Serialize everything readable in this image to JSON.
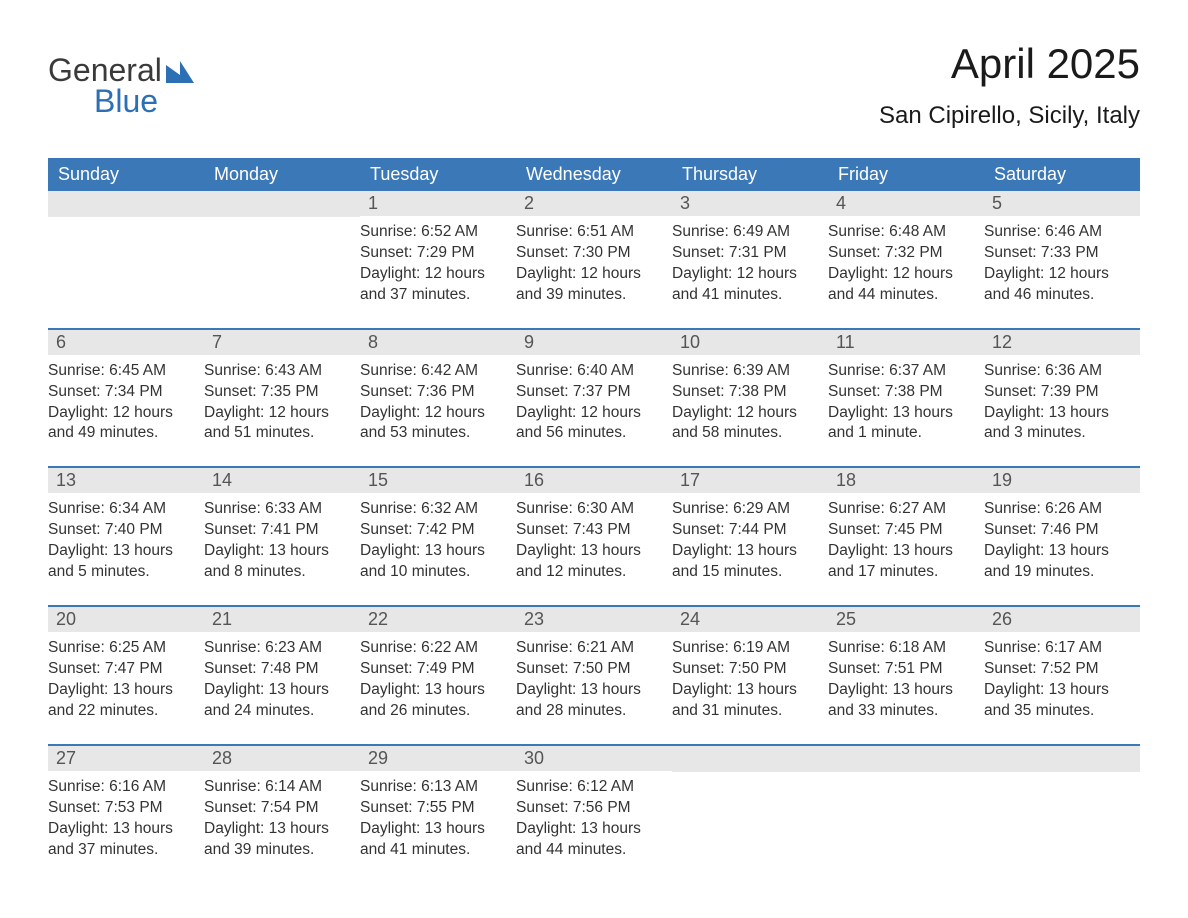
{
  "logo": {
    "text1": "General",
    "text2": "Blue",
    "icon_color": "#2c6fb5"
  },
  "title": "April 2025",
  "subtitle": "San Cipirello, Sicily, Italy",
  "colors": {
    "header_bg": "#3b78b8",
    "header_fg": "#ffffff",
    "daynum_bg": "#e7e7e7",
    "daynum_fg": "#555555",
    "row_border": "#3b78b8",
    "body_text": "#333333",
    "background": "#ffffff"
  },
  "typography": {
    "title_fontsize": 42,
    "subtitle_fontsize": 24,
    "dow_fontsize": 18,
    "daynum_fontsize": 18,
    "detail_fontsize": 15.5,
    "font_family": "Arial"
  },
  "dow": [
    "Sunday",
    "Monday",
    "Tuesday",
    "Wednesday",
    "Thursday",
    "Friday",
    "Saturday"
  ],
  "weeks": [
    [
      null,
      null,
      {
        "n": "1",
        "sr": "Sunrise: 6:52 AM",
        "ss": "Sunset: 7:29 PM",
        "dl1": "Daylight: 12 hours",
        "dl2": "and 37 minutes."
      },
      {
        "n": "2",
        "sr": "Sunrise: 6:51 AM",
        "ss": "Sunset: 7:30 PM",
        "dl1": "Daylight: 12 hours",
        "dl2": "and 39 minutes."
      },
      {
        "n": "3",
        "sr": "Sunrise: 6:49 AM",
        "ss": "Sunset: 7:31 PM",
        "dl1": "Daylight: 12 hours",
        "dl2": "and 41 minutes."
      },
      {
        "n": "4",
        "sr": "Sunrise: 6:48 AM",
        "ss": "Sunset: 7:32 PM",
        "dl1": "Daylight: 12 hours",
        "dl2": "and 44 minutes."
      },
      {
        "n": "5",
        "sr": "Sunrise: 6:46 AM",
        "ss": "Sunset: 7:33 PM",
        "dl1": "Daylight: 12 hours",
        "dl2": "and 46 minutes."
      }
    ],
    [
      {
        "n": "6",
        "sr": "Sunrise: 6:45 AM",
        "ss": "Sunset: 7:34 PM",
        "dl1": "Daylight: 12 hours",
        "dl2": "and 49 minutes."
      },
      {
        "n": "7",
        "sr": "Sunrise: 6:43 AM",
        "ss": "Sunset: 7:35 PM",
        "dl1": "Daylight: 12 hours",
        "dl2": "and 51 minutes."
      },
      {
        "n": "8",
        "sr": "Sunrise: 6:42 AM",
        "ss": "Sunset: 7:36 PM",
        "dl1": "Daylight: 12 hours",
        "dl2": "and 53 minutes."
      },
      {
        "n": "9",
        "sr": "Sunrise: 6:40 AM",
        "ss": "Sunset: 7:37 PM",
        "dl1": "Daylight: 12 hours",
        "dl2": "and 56 minutes."
      },
      {
        "n": "10",
        "sr": "Sunrise: 6:39 AM",
        "ss": "Sunset: 7:38 PM",
        "dl1": "Daylight: 12 hours",
        "dl2": "and 58 minutes."
      },
      {
        "n": "11",
        "sr": "Sunrise: 6:37 AM",
        "ss": "Sunset: 7:38 PM",
        "dl1": "Daylight: 13 hours",
        "dl2": "and 1 minute."
      },
      {
        "n": "12",
        "sr": "Sunrise: 6:36 AM",
        "ss": "Sunset: 7:39 PM",
        "dl1": "Daylight: 13 hours",
        "dl2": "and 3 minutes."
      }
    ],
    [
      {
        "n": "13",
        "sr": "Sunrise: 6:34 AM",
        "ss": "Sunset: 7:40 PM",
        "dl1": "Daylight: 13 hours",
        "dl2": "and 5 minutes."
      },
      {
        "n": "14",
        "sr": "Sunrise: 6:33 AM",
        "ss": "Sunset: 7:41 PM",
        "dl1": "Daylight: 13 hours",
        "dl2": "and 8 minutes."
      },
      {
        "n": "15",
        "sr": "Sunrise: 6:32 AM",
        "ss": "Sunset: 7:42 PM",
        "dl1": "Daylight: 13 hours",
        "dl2": "and 10 minutes."
      },
      {
        "n": "16",
        "sr": "Sunrise: 6:30 AM",
        "ss": "Sunset: 7:43 PM",
        "dl1": "Daylight: 13 hours",
        "dl2": "and 12 minutes."
      },
      {
        "n": "17",
        "sr": "Sunrise: 6:29 AM",
        "ss": "Sunset: 7:44 PM",
        "dl1": "Daylight: 13 hours",
        "dl2": "and 15 minutes."
      },
      {
        "n": "18",
        "sr": "Sunrise: 6:27 AM",
        "ss": "Sunset: 7:45 PM",
        "dl1": "Daylight: 13 hours",
        "dl2": "and 17 minutes."
      },
      {
        "n": "19",
        "sr": "Sunrise: 6:26 AM",
        "ss": "Sunset: 7:46 PM",
        "dl1": "Daylight: 13 hours",
        "dl2": "and 19 minutes."
      }
    ],
    [
      {
        "n": "20",
        "sr": "Sunrise: 6:25 AM",
        "ss": "Sunset: 7:47 PM",
        "dl1": "Daylight: 13 hours",
        "dl2": "and 22 minutes."
      },
      {
        "n": "21",
        "sr": "Sunrise: 6:23 AM",
        "ss": "Sunset: 7:48 PM",
        "dl1": "Daylight: 13 hours",
        "dl2": "and 24 minutes."
      },
      {
        "n": "22",
        "sr": "Sunrise: 6:22 AM",
        "ss": "Sunset: 7:49 PM",
        "dl1": "Daylight: 13 hours",
        "dl2": "and 26 minutes."
      },
      {
        "n": "23",
        "sr": "Sunrise: 6:21 AM",
        "ss": "Sunset: 7:50 PM",
        "dl1": "Daylight: 13 hours",
        "dl2": "and 28 minutes."
      },
      {
        "n": "24",
        "sr": "Sunrise: 6:19 AM",
        "ss": "Sunset: 7:50 PM",
        "dl1": "Daylight: 13 hours",
        "dl2": "and 31 minutes."
      },
      {
        "n": "25",
        "sr": "Sunrise: 6:18 AM",
        "ss": "Sunset: 7:51 PM",
        "dl1": "Daylight: 13 hours",
        "dl2": "and 33 minutes."
      },
      {
        "n": "26",
        "sr": "Sunrise: 6:17 AM",
        "ss": "Sunset: 7:52 PM",
        "dl1": "Daylight: 13 hours",
        "dl2": "and 35 minutes."
      }
    ],
    [
      {
        "n": "27",
        "sr": "Sunrise: 6:16 AM",
        "ss": "Sunset: 7:53 PM",
        "dl1": "Daylight: 13 hours",
        "dl2": "and 37 minutes."
      },
      {
        "n": "28",
        "sr": "Sunrise: 6:14 AM",
        "ss": "Sunset: 7:54 PM",
        "dl1": "Daylight: 13 hours",
        "dl2": "and 39 minutes."
      },
      {
        "n": "29",
        "sr": "Sunrise: 6:13 AM",
        "ss": "Sunset: 7:55 PM",
        "dl1": "Daylight: 13 hours",
        "dl2": "and 41 minutes."
      },
      {
        "n": "30",
        "sr": "Sunrise: 6:12 AM",
        "ss": "Sunset: 7:56 PM",
        "dl1": "Daylight: 13 hours",
        "dl2": "and 44 minutes."
      },
      null,
      null,
      null
    ]
  ]
}
